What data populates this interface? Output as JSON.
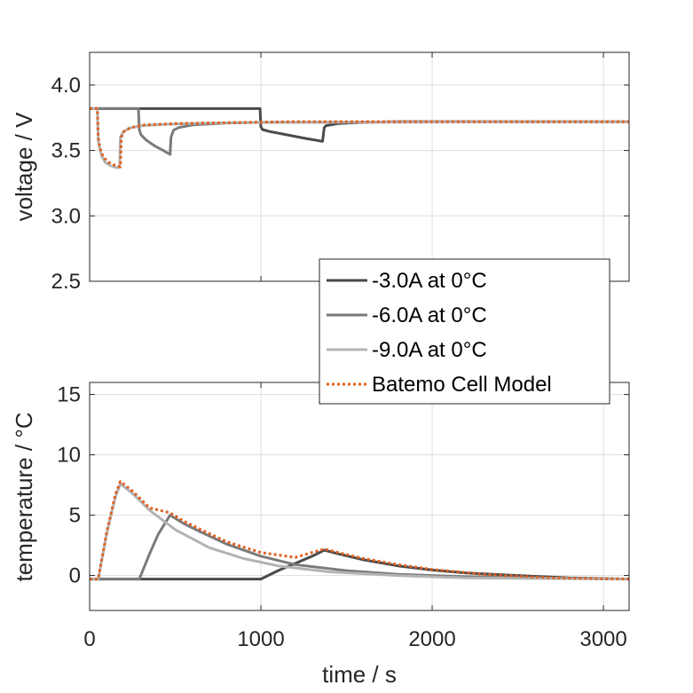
{
  "chart_data": [
    {
      "type": "line",
      "ylabel": "voltage / V",
      "xlim": [
        0,
        3150
      ],
      "ylim": [
        2.5,
        4.25
      ],
      "xticks": [
        0,
        1000,
        2000,
        3000
      ],
      "yticks": [
        2.5,
        3.0,
        3.5,
        4.0
      ],
      "ytick_labels": [
        "2.5",
        "3.0",
        "3.5",
        "4.0"
      ],
      "grid": true,
      "series": [
        {
          "name": "-3.0A at 0°C",
          "color": "#4a4a4a",
          "style": "solid",
          "x": [
            0,
            995,
            1000,
            1010,
            1050,
            1150,
            1250,
            1360,
            1370,
            1380,
            1450,
            1600,
            1800,
            2100,
            3150
          ],
          "y": [
            3.82,
            3.82,
            3.68,
            3.66,
            3.645,
            3.62,
            3.595,
            3.57,
            3.675,
            3.69,
            3.705,
            3.715,
            3.72,
            3.72,
            3.72
          ]
        },
        {
          "name": "-6.0A at 0°C",
          "color": "#7a7a7a",
          "style": "solid",
          "x": [
            0,
            285,
            290,
            300,
            330,
            380,
            430,
            470,
            475,
            490,
            520,
            600,
            800,
            1000,
            3150
          ],
          "y": [
            3.82,
            3.82,
            3.66,
            3.62,
            3.58,
            3.535,
            3.5,
            3.47,
            3.6,
            3.655,
            3.675,
            3.695,
            3.71,
            3.715,
            3.72
          ]
        },
        {
          "name": "-9.0A at 0°C",
          "color": "#b3b3b3",
          "style": "solid",
          "x": [
            0,
            45,
            50,
            58,
            70,
            90,
            120,
            150,
            175,
            180,
            195,
            230,
            300,
            450,
            700,
            1000,
            3150
          ],
          "y": [
            3.82,
            3.82,
            3.58,
            3.52,
            3.46,
            3.41,
            3.385,
            3.37,
            3.37,
            3.6,
            3.64,
            3.67,
            3.69,
            3.7,
            3.71,
            3.715,
            3.72
          ]
        },
        {
          "name": "Batemo Cell Model",
          "color": "#e06020",
          "style": "dotted",
          "x": [
            0,
            45,
            50,
            60,
            80,
            110,
            150,
            180,
            185,
            200,
            240,
            320,
            500,
            800,
            1200,
            3150
          ],
          "y": [
            3.82,
            3.82,
            3.6,
            3.52,
            3.45,
            3.41,
            3.385,
            3.375,
            3.6,
            3.645,
            3.675,
            3.695,
            3.705,
            3.712,
            3.72,
            3.72
          ]
        }
      ]
    },
    {
      "type": "line",
      "xlabel": "time / s",
      "ylabel": "temperature / °C",
      "xlim": [
        0,
        3150
      ],
      "ylim": [
        -2.9,
        16
      ],
      "xticks": [
        0,
        1000,
        2000,
        3000
      ],
      "xtick_labels": [
        "0",
        "1000",
        "2000",
        "3000"
      ],
      "yticks": [
        0,
        5,
        10,
        15
      ],
      "ytick_labels": [
        "0",
        "5",
        "10",
        "15"
      ],
      "grid": true,
      "series": [
        {
          "name": "-3.0A at 0°C",
          "color": "#4a4a4a",
          "style": "solid",
          "x": [
            0,
            1000,
            1100,
            1200,
            1300,
            1370,
            1450,
            1600,
            1800,
            2000,
            2200,
            2500,
            2800,
            3150
          ],
          "y": [
            -0.3,
            -0.3,
            0.4,
            1.0,
            1.6,
            2.1,
            1.8,
            1.3,
            0.8,
            0.45,
            0.2,
            0.0,
            -0.2,
            -0.3
          ]
        },
        {
          "name": "-6.0A at 0°C",
          "color": "#7a7a7a",
          "style": "solid",
          "x": [
            0,
            290,
            350,
            400,
            470,
            550,
            650,
            800,
            1000,
            1200,
            1500,
            1800,
            2200,
            2600,
            3150
          ],
          "y": [
            -0.3,
            -0.3,
            1.8,
            3.4,
            5.0,
            4.3,
            3.6,
            2.6,
            1.6,
            0.9,
            0.4,
            0.1,
            -0.1,
            -0.2,
            -0.3
          ]
        },
        {
          "name": "-9.0A at 0°C",
          "color": "#b3b3b3",
          "style": "solid",
          "x": [
            0,
            50,
            100,
            150,
            180,
            250,
            350,
            500,
            700,
            900,
            1100,
            1400,
            1800,
            2200,
            3150
          ],
          "y": [
            -0.3,
            -0.3,
            3.5,
            6.5,
            7.6,
            6.8,
            5.4,
            3.8,
            2.3,
            1.4,
            0.8,
            0.3,
            0.0,
            -0.2,
            -0.3
          ]
        },
        {
          "name": "Batemo Cell Model",
          "color": "#e06020",
          "style": "dotted",
          "x": [
            0,
            50,
            100,
            150,
            180,
            250,
            350,
            470,
            550,
            650,
            800,
            1000,
            1200,
            1370,
            1450,
            1600,
            1800,
            2000,
            2300,
            2700,
            3150
          ],
          "y": [
            -0.3,
            -0.3,
            3.6,
            6.7,
            7.8,
            7.0,
            5.6,
            5.2,
            4.5,
            3.8,
            2.8,
            1.9,
            1.5,
            2.2,
            1.9,
            1.4,
            0.9,
            0.5,
            0.1,
            -0.2,
            -0.3
          ]
        }
      ]
    }
  ],
  "legend": {
    "placement": "bottom-right of top panel",
    "entries": [
      "-3.0A at 0°C",
      "-6.0A at 0°C",
      "-9.0A at 0°C",
      "Batemo Cell Model"
    ]
  }
}
